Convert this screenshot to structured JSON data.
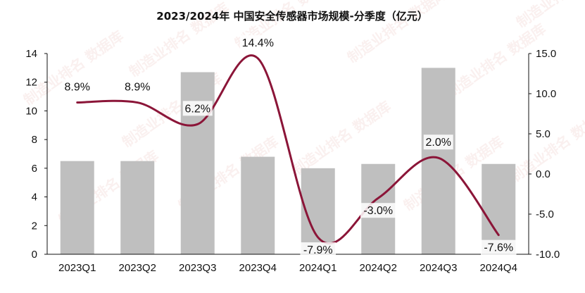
{
  "chart_data": {
    "type": "bar",
    "title": "2023/2024年 中国安全传感器市场规模-分季度（亿元）",
    "categories": [
      "2023Q1",
      "2023Q2",
      "2023Q3",
      "2023Q4",
      "2024Q1",
      "2024Q2",
      "2024Q3",
      "2024Q4"
    ],
    "series": [
      {
        "axis": "left",
        "type": "bar",
        "values": [
          6.5,
          6.5,
          12.7,
          6.8,
          6.0,
          6.3,
          13.0,
          6.3
        ],
        "color": "#bfbfbf"
      },
      {
        "axis": "right",
        "type": "line",
        "smooth": true,
        "values": [
          8.9,
          8.9,
          6.2,
          14.4,
          -7.9,
          -3.0,
          2.0,
          -7.6
        ],
        "labels": [
          "8.9%",
          "8.9%",
          "6.2%",
          "14.4%",
          "-7.9%",
          "-3.0%",
          "2.0%",
          "-7.6%"
        ],
        "color": "#8b1538"
      }
    ],
    "ylim_left": [
      0,
      14
    ],
    "yticks_left": [
      "0",
      "2",
      "4",
      "6",
      "8",
      "10",
      "12",
      "14"
    ],
    "ylim_right": [
      -10,
      15
    ],
    "yticks_right": [
      "-10.0",
      "-5.0",
      "0.0",
      "5.0",
      "10.0",
      "15.0"
    ],
    "grid": false,
    "legend": "none"
  },
  "watermark": "制造业排名 数据库"
}
